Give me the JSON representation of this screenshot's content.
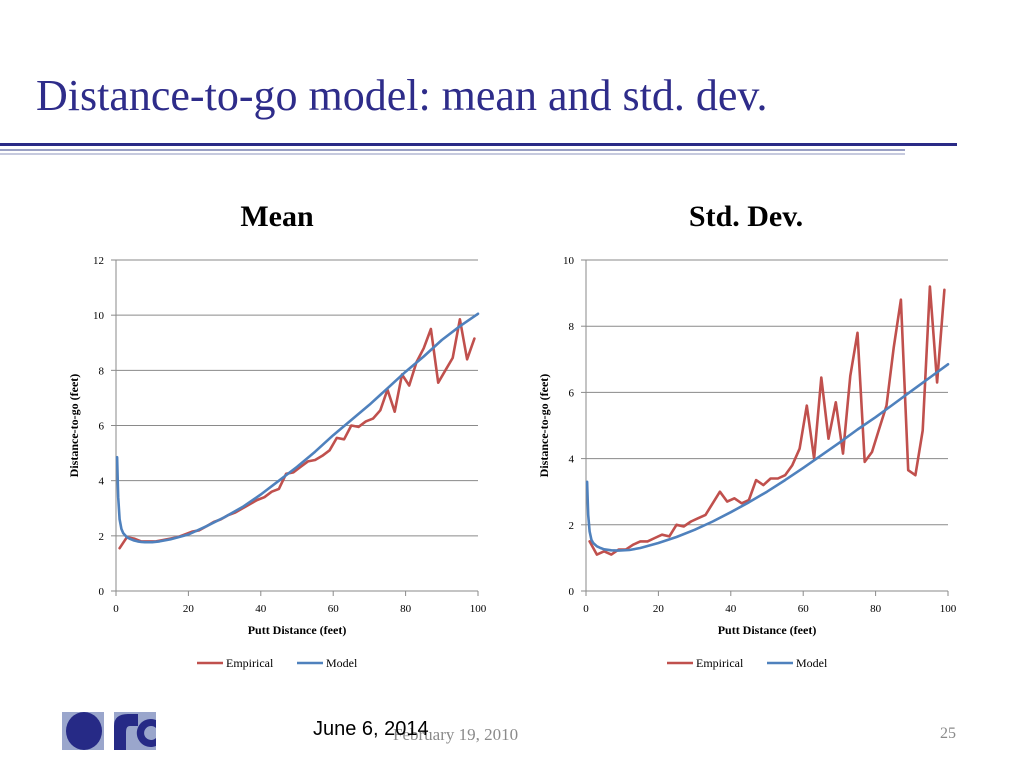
{
  "slide": {
    "title": "Distance-to-go model: mean and std. dev.",
    "footer_date": "June 6, 2014",
    "footer_date_old": "February 19, 2010",
    "page_number": "25"
  },
  "colors": {
    "title": "#2e2c8a",
    "empirical": "#c0504d",
    "model": "#4f81bd",
    "rule": "#2a2a86"
  },
  "chart_data": [
    {
      "type": "line",
      "title": "Mean",
      "xlabel": "Putt Distance (feet)",
      "ylabel": "Distance-to-go (feet)",
      "xlim": [
        0,
        100
      ],
      "ylim": [
        0,
        12
      ],
      "xticks": [
        0,
        20,
        40,
        60,
        80,
        100
      ],
      "yticks": [
        0,
        2,
        4,
        6,
        8,
        10,
        12
      ],
      "grid": "horizontal",
      "legend_position": "bottom",
      "series": [
        {
          "name": "Empirical",
          "color": "#c0504d",
          "points": [
            [
              1,
              1.55
            ],
            [
              3,
              1.95
            ],
            [
              5,
              1.9
            ],
            [
              7,
              1.8
            ],
            [
              9,
              1.8
            ],
            [
              11,
              1.8
            ],
            [
              13,
              1.85
            ],
            [
              15,
              1.9
            ],
            [
              17,
              1.95
            ],
            [
              19,
              2.05
            ],
            [
              21,
              2.15
            ],
            [
              23,
              2.2
            ],
            [
              25,
              2.35
            ],
            [
              27,
              2.5
            ],
            [
              29,
              2.6
            ],
            [
              31,
              2.75
            ],
            [
              33,
              2.85
            ],
            [
              35,
              3.0
            ],
            [
              37,
              3.15
            ],
            [
              39,
              3.3
            ],
            [
              41,
              3.4
            ],
            [
              43,
              3.6
            ],
            [
              45,
              3.7
            ],
            [
              47,
              4.25
            ],
            [
              49,
              4.3
            ],
            [
              51,
              4.5
            ],
            [
              53,
              4.7
            ],
            [
              55,
              4.75
            ],
            [
              57,
              4.9
            ],
            [
              59,
              5.1
            ],
            [
              61,
              5.55
            ],
            [
              63,
              5.5
            ],
            [
              65,
              6.0
            ],
            [
              67,
              5.95
            ],
            [
              69,
              6.15
            ],
            [
              71,
              6.25
            ],
            [
              73,
              6.55
            ],
            [
              75,
              7.3
            ],
            [
              77,
              6.5
            ],
            [
              79,
              7.85
            ],
            [
              81,
              7.45
            ],
            [
              83,
              8.3
            ],
            [
              85,
              8.8
            ],
            [
              87,
              9.5
            ],
            [
              89,
              7.55
            ],
            [
              91,
              8.0
            ],
            [
              93,
              8.45
            ],
            [
              95,
              9.85
            ],
            [
              97,
              8.4
            ],
            [
              99,
              9.15
            ]
          ]
        },
        {
          "name": "Model",
          "color": "#4f81bd",
          "points": [
            [
              0.3,
              4.85
            ],
            [
              0.6,
              3.4
            ],
            [
              1,
              2.6
            ],
            [
              1.5,
              2.25
            ],
            [
              2,
              2.1
            ],
            [
              3,
              1.95
            ],
            [
              4,
              1.88
            ],
            [
              5,
              1.83
            ],
            [
              6,
              1.8
            ],
            [
              7,
              1.78
            ],
            [
              8,
              1.77
            ],
            [
              10,
              1.77
            ],
            [
              12,
              1.8
            ],
            [
              15,
              1.87
            ],
            [
              20,
              2.05
            ],
            [
              25,
              2.35
            ],
            [
              30,
              2.68
            ],
            [
              35,
              3.05
            ],
            [
              40,
              3.5
            ],
            [
              45,
              4.0
            ],
            [
              50,
              4.5
            ],
            [
              55,
              5.05
            ],
            [
              60,
              5.65
            ],
            [
              65,
              6.2
            ],
            [
              70,
              6.75
            ],
            [
              75,
              7.35
            ],
            [
              80,
              7.95
            ],
            [
              85,
              8.5
            ],
            [
              90,
              9.1
            ],
            [
              95,
              9.6
            ],
            [
              100,
              10.05
            ]
          ]
        }
      ]
    },
    {
      "type": "line",
      "title": "Std. Dev.",
      "xlabel": "Putt Distance (feet)",
      "ylabel": "Distance-to-go (feet)",
      "xlim": [
        0,
        100
      ],
      "ylim": [
        0,
        10
      ],
      "xticks": [
        0,
        20,
        40,
        60,
        80,
        100
      ],
      "yticks": [
        0,
        2,
        4,
        6,
        8,
        10
      ],
      "grid": "horizontal",
      "legend_position": "bottom",
      "series": [
        {
          "name": "Empirical",
          "color": "#c0504d",
          "points": [
            [
              1,
              1.5
            ],
            [
              3,
              1.1
            ],
            [
              5,
              1.2
            ],
            [
              7,
              1.1
            ],
            [
              9,
              1.25
            ],
            [
              11,
              1.25
            ],
            [
              13,
              1.4
            ],
            [
              15,
              1.5
            ],
            [
              17,
              1.5
            ],
            [
              19,
              1.6
            ],
            [
              21,
              1.7
            ],
            [
              23,
              1.65
            ],
            [
              25,
              2.0
            ],
            [
              27,
              1.95
            ],
            [
              29,
              2.1
            ],
            [
              31,
              2.2
            ],
            [
              33,
              2.3
            ],
            [
              35,
              2.65
            ],
            [
              37,
              3.0
            ],
            [
              39,
              2.7
            ],
            [
              41,
              2.8
            ],
            [
              43,
              2.65
            ],
            [
              45,
              2.75
            ],
            [
              47,
              3.35
            ],
            [
              49,
              3.2
            ],
            [
              51,
              3.4
            ],
            [
              53,
              3.4
            ],
            [
              55,
              3.5
            ],
            [
              57,
              3.8
            ],
            [
              59,
              4.3
            ],
            [
              61,
              5.6
            ],
            [
              63,
              4.0
            ],
            [
              65,
              6.45
            ],
            [
              67,
              4.6
            ],
            [
              69,
              5.7
            ],
            [
              71,
              4.15
            ],
            [
              73,
              6.5
            ],
            [
              75,
              7.8
            ],
            [
              77,
              3.9
            ],
            [
              79,
              4.2
            ],
            [
              81,
              4.9
            ],
            [
              83,
              5.6
            ],
            [
              85,
              7.35
            ],
            [
              87,
              8.8
            ],
            [
              89,
              3.65
            ],
            [
              91,
              3.5
            ],
            [
              93,
              4.85
            ],
            [
              95,
              9.2
            ],
            [
              97,
              6.3
            ],
            [
              99,
              9.1
            ]
          ]
        },
        {
          "name": "Model",
          "color": "#4f81bd",
          "points": [
            [
              0.3,
              3.3
            ],
            [
              0.6,
              2.3
            ],
            [
              1,
              1.8
            ],
            [
              1.5,
              1.55
            ],
            [
              2,
              1.45
            ],
            [
              3,
              1.35
            ],
            [
              4,
              1.3
            ],
            [
              5,
              1.26
            ],
            [
              7,
              1.23
            ],
            [
              9,
              1.22
            ],
            [
              12,
              1.24
            ],
            [
              15,
              1.3
            ],
            [
              20,
              1.45
            ],
            [
              25,
              1.63
            ],
            [
              30,
              1.85
            ],
            [
              35,
              2.1
            ],
            [
              40,
              2.38
            ],
            [
              45,
              2.68
            ],
            [
              50,
              3.0
            ],
            [
              55,
              3.35
            ],
            [
              60,
              3.72
            ],
            [
              65,
              4.1
            ],
            [
              70,
              4.48
            ],
            [
              75,
              4.88
            ],
            [
              80,
              5.25
            ],
            [
              85,
              5.65
            ],
            [
              90,
              6.05
            ],
            [
              95,
              6.45
            ],
            [
              100,
              6.85
            ]
          ]
        }
      ]
    }
  ]
}
